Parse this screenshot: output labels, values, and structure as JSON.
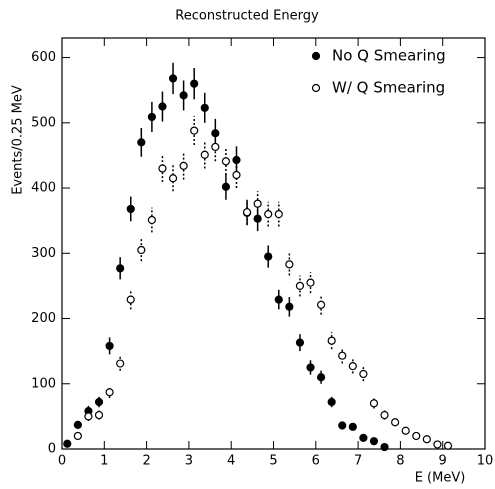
{
  "chart_data": {
    "type": "scatter",
    "title": "Reconstructed Energy",
    "x_label": "E (MeV)",
    "y_label": "Events/0.25 MeV",
    "xlim": [
      0,
      10
    ],
    "ylim": [
      0,
      630
    ],
    "xticks": [
      0,
      1,
      2,
      3,
      4,
      5,
      6,
      7,
      8,
      9,
      10
    ],
    "yticks": [
      0,
      100,
      200,
      300,
      400,
      500,
      600
    ],
    "legend": "upper right",
    "series": [
      {
        "name": "No Q Smearing",
        "color": "#000000",
        "marker": "filled",
        "x": [
          0.125,
          0.375,
          0.625,
          0.875,
          1.125,
          1.375,
          1.625,
          1.875,
          2.125,
          2.375,
          2.625,
          2.875,
          3.125,
          3.375,
          3.625,
          3.875,
          4.125,
          4.375,
          4.625,
          4.875,
          5.125,
          5.375,
          5.625,
          5.875,
          6.125,
          6.375,
          6.625,
          6.875,
          7.125,
          7.375,
          7.625
        ],
        "values": [
          8,
          37,
          58,
          72,
          158,
          277,
          368,
          470,
          509,
          525,
          568,
          542,
          560,
          523,
          484,
          402,
          443,
          362,
          353,
          295,
          229,
          218,
          163,
          125,
          110,
          72,
          36,
          34,
          17,
          12,
          3
        ],
        "errors": [
          3,
          6,
          8,
          8,
          13,
          17,
          19,
          22,
          23,
          23,
          24,
          23,
          24,
          23,
          22,
          20,
          21,
          19,
          19,
          17,
          15,
          15,
          13,
          11,
          10,
          8,
          6,
          6,
          4,
          3,
          2
        ]
      },
      {
        "name": "W/ Q Smearing",
        "color": "#000000",
        "marker": "open",
        "x": [
          0.375,
          0.625,
          0.875,
          1.125,
          1.375,
          1.625,
          1.875,
          2.125,
          2.375,
          2.625,
          2.875,
          3.125,
          3.375,
          3.625,
          3.875,
          4.125,
          4.375,
          4.625,
          4.875,
          5.125,
          5.375,
          5.625,
          5.875,
          6.125,
          6.375,
          6.625,
          6.875,
          7.125,
          7.375,
          7.625,
          7.875,
          8.125,
          8.375,
          8.625,
          8.875,
          9.125
        ],
        "values": [
          20,
          50,
          52,
          87,
          131,
          229,
          305,
          351,
          430,
          415,
          434,
          488,
          451,
          463,
          441,
          420,
          363,
          376,
          360,
          360,
          283,
          250,
          255,
          221,
          166,
          143,
          127,
          115,
          70,
          52,
          41,
          28,
          20,
          15,
          7,
          5
        ],
        "errors": [
          4,
          7,
          7,
          9,
          11,
          15,
          17,
          19,
          21,
          20,
          21,
          22,
          21,
          22,
          21,
          20,
          19,
          19,
          19,
          19,
          17,
          16,
          16,
          15,
          13,
          12,
          11,
          11,
          8,
          7,
          6,
          5,
          4,
          4,
          3,
          2
        ]
      }
    ]
  }
}
